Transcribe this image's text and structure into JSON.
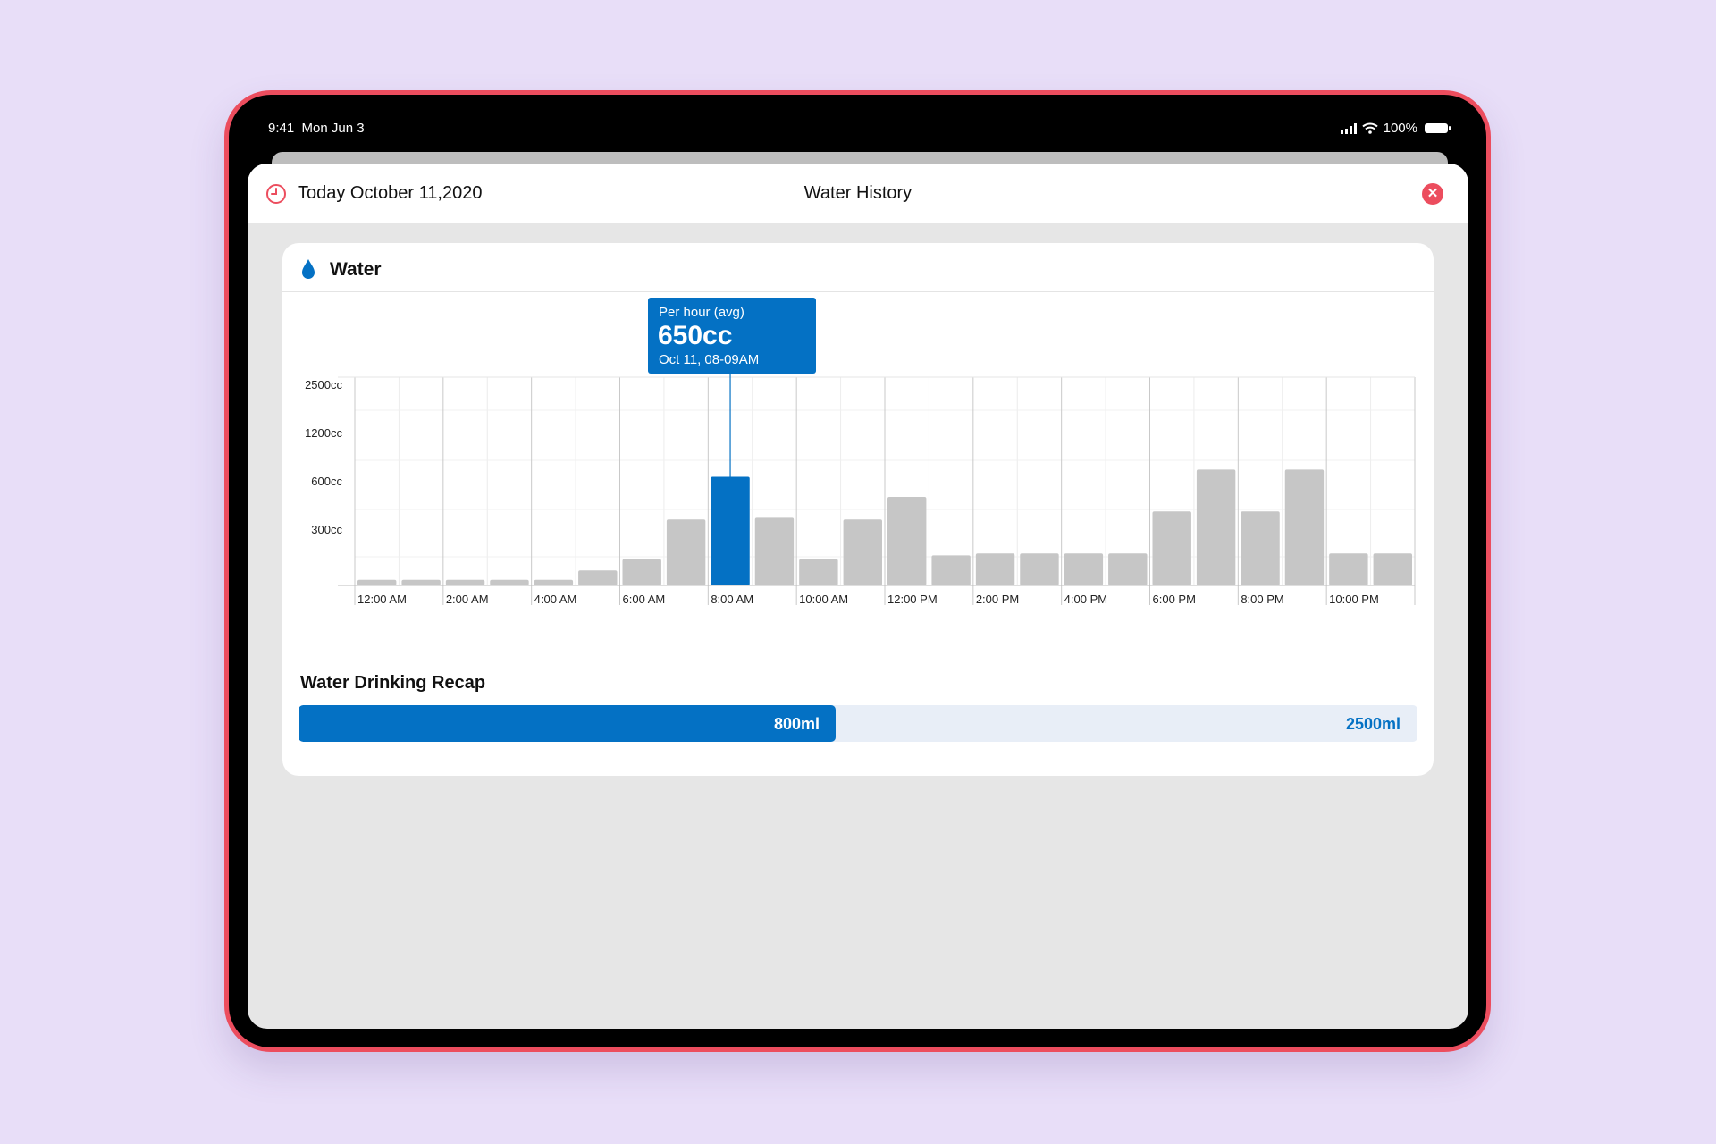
{
  "status_bar": {
    "time": "9:41",
    "date": "Mon Jun 3",
    "battery": "100%"
  },
  "header": {
    "date_label": "Today October 11,2020",
    "title": "Water History"
  },
  "card": {
    "title": "Water"
  },
  "tooltip": {
    "label": "Per hour (avg)",
    "value": "650cc",
    "time": "Oct 11, 08-09AM"
  },
  "chart_data": {
    "type": "bar",
    "y_tick_labels": [
      "2500cc",
      "1200cc",
      "600cc",
      "300cc"
    ],
    "x_tick_labels": [
      "12:00 AM",
      "2:00 AM",
      "4:00 AM",
      "6:00 AM",
      "8:00 AM",
      "10:00 AM",
      "12:00 PM",
      "2:00 PM",
      "4:00 PM",
      "6:00 PM",
      "8:00 PM",
      "10:00 PM"
    ],
    "values": [
      30,
      30,
      30,
      30,
      30,
      80,
      140,
      360,
      650,
      370,
      140,
      360,
      500,
      160,
      170,
      170,
      170,
      170,
      410,
      740,
      410,
      740,
      170,
      170
    ],
    "highlight_index": 8,
    "colors": {
      "highlight": "#0471c4",
      "bar": "#c6c6c6"
    }
  },
  "recap": {
    "title": "Water Drinking Recap",
    "value_label": "800ml",
    "goal_label": "2500ml",
    "value": 800,
    "goal": 2500
  }
}
